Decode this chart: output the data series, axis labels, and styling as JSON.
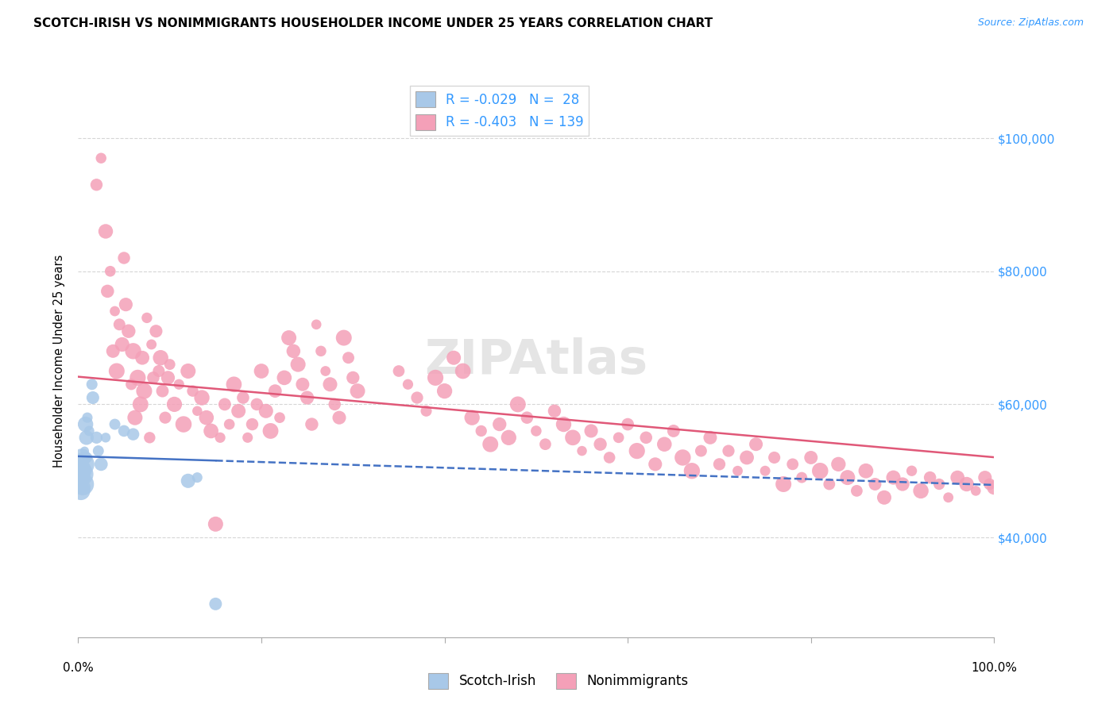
{
  "title": "SCOTCH-IRISH VS NONIMMIGRANTS HOUSEHOLDER INCOME UNDER 25 YEARS CORRELATION CHART",
  "source": "Source: ZipAtlas.com",
  "ylabel": "Householder Income Under 25 years",
  "legend_blue": {
    "R": -0.029,
    "N": 28,
    "label": "Scotch-Irish"
  },
  "legend_pink": {
    "R": -0.403,
    "N": 139,
    "label": "Nonimmigrants"
  },
  "ylim": [
    25000,
    108000
  ],
  "xlim": [
    0.0,
    1.0
  ],
  "yticks": [
    40000,
    60000,
    80000,
    100000
  ],
  "ytick_labels": [
    "$40,000",
    "$60,000",
    "$80,000",
    "$100,000"
  ],
  "blue_color": "#a8c8e8",
  "blue_line_color": "#4472c4",
  "pink_color": "#f4a0b8",
  "pink_line_color": "#e05878",
  "background_color": "#ffffff",
  "grid_color": "#cccccc",
  "scotch_irish_points": [
    [
      0.001,
      49000
    ],
    [
      0.002,
      48500
    ],
    [
      0.003,
      50000
    ],
    [
      0.003,
      47000
    ],
    [
      0.004,
      52000
    ],
    [
      0.004,
      49500
    ],
    [
      0.005,
      51000
    ],
    [
      0.005,
      48000
    ],
    [
      0.006,
      50500
    ],
    [
      0.006,
      47500
    ],
    [
      0.007,
      53000
    ],
    [
      0.008,
      57000
    ],
    [
      0.009,
      55000
    ],
    [
      0.01,
      58000
    ],
    [
      0.01,
      52000
    ],
    [
      0.012,
      56000
    ],
    [
      0.015,
      63000
    ],
    [
      0.016,
      61000
    ],
    [
      0.02,
      55000
    ],
    [
      0.022,
      53000
    ],
    [
      0.025,
      51000
    ],
    [
      0.03,
      55000
    ],
    [
      0.04,
      57000
    ],
    [
      0.05,
      56000
    ],
    [
      0.06,
      55500
    ],
    [
      0.12,
      48500
    ],
    [
      0.13,
      49000
    ],
    [
      0.15,
      30000
    ]
  ],
  "nonimmigrant_points": [
    [
      0.02,
      93000
    ],
    [
      0.025,
      97000
    ],
    [
      0.03,
      86000
    ],
    [
      0.032,
      77000
    ],
    [
      0.035,
      80000
    ],
    [
      0.038,
      68000
    ],
    [
      0.04,
      74000
    ],
    [
      0.042,
      65000
    ],
    [
      0.045,
      72000
    ],
    [
      0.048,
      69000
    ],
    [
      0.05,
      82000
    ],
    [
      0.052,
      75000
    ],
    [
      0.055,
      71000
    ],
    [
      0.058,
      63000
    ],
    [
      0.06,
      68000
    ],
    [
      0.062,
      58000
    ],
    [
      0.065,
      64000
    ],
    [
      0.068,
      60000
    ],
    [
      0.07,
      67000
    ],
    [
      0.072,
      62000
    ],
    [
      0.075,
      73000
    ],
    [
      0.078,
      55000
    ],
    [
      0.08,
      69000
    ],
    [
      0.082,
      64000
    ],
    [
      0.085,
      71000
    ],
    [
      0.088,
      65000
    ],
    [
      0.09,
      67000
    ],
    [
      0.092,
      62000
    ],
    [
      0.095,
      58000
    ],
    [
      0.098,
      64000
    ],
    [
      0.1,
      66000
    ],
    [
      0.105,
      60000
    ],
    [
      0.11,
      63000
    ],
    [
      0.115,
      57000
    ],
    [
      0.12,
      65000
    ],
    [
      0.125,
      62000
    ],
    [
      0.13,
      59000
    ],
    [
      0.135,
      61000
    ],
    [
      0.14,
      58000
    ],
    [
      0.145,
      56000
    ],
    [
      0.15,
      42000
    ],
    [
      0.155,
      55000
    ],
    [
      0.16,
      60000
    ],
    [
      0.165,
      57000
    ],
    [
      0.17,
      63000
    ],
    [
      0.175,
      59000
    ],
    [
      0.18,
      61000
    ],
    [
      0.185,
      55000
    ],
    [
      0.19,
      57000
    ],
    [
      0.195,
      60000
    ],
    [
      0.2,
      65000
    ],
    [
      0.205,
      59000
    ],
    [
      0.21,
      56000
    ],
    [
      0.215,
      62000
    ],
    [
      0.22,
      58000
    ],
    [
      0.225,
      64000
    ],
    [
      0.23,
      70000
    ],
    [
      0.235,
      68000
    ],
    [
      0.24,
      66000
    ],
    [
      0.245,
      63000
    ],
    [
      0.25,
      61000
    ],
    [
      0.255,
      57000
    ],
    [
      0.26,
      72000
    ],
    [
      0.265,
      68000
    ],
    [
      0.27,
      65000
    ],
    [
      0.275,
      63000
    ],
    [
      0.28,
      60000
    ],
    [
      0.285,
      58000
    ],
    [
      0.29,
      70000
    ],
    [
      0.295,
      67000
    ],
    [
      0.3,
      64000
    ],
    [
      0.305,
      62000
    ],
    [
      0.35,
      65000
    ],
    [
      0.36,
      63000
    ],
    [
      0.37,
      61000
    ],
    [
      0.38,
      59000
    ],
    [
      0.39,
      64000
    ],
    [
      0.4,
      62000
    ],
    [
      0.41,
      67000
    ],
    [
      0.42,
      65000
    ],
    [
      0.43,
      58000
    ],
    [
      0.44,
      56000
    ],
    [
      0.45,
      54000
    ],
    [
      0.46,
      57000
    ],
    [
      0.47,
      55000
    ],
    [
      0.48,
      60000
    ],
    [
      0.49,
      58000
    ],
    [
      0.5,
      56000
    ],
    [
      0.51,
      54000
    ],
    [
      0.52,
      59000
    ],
    [
      0.53,
      57000
    ],
    [
      0.54,
      55000
    ],
    [
      0.55,
      53000
    ],
    [
      0.56,
      56000
    ],
    [
      0.57,
      54000
    ],
    [
      0.58,
      52000
    ],
    [
      0.59,
      55000
    ],
    [
      0.6,
      57000
    ],
    [
      0.61,
      53000
    ],
    [
      0.62,
      55000
    ],
    [
      0.63,
      51000
    ],
    [
      0.64,
      54000
    ],
    [
      0.65,
      56000
    ],
    [
      0.66,
      52000
    ],
    [
      0.67,
      50000
    ],
    [
      0.68,
      53000
    ],
    [
      0.69,
      55000
    ],
    [
      0.7,
      51000
    ],
    [
      0.71,
      53000
    ],
    [
      0.72,
      50000
    ],
    [
      0.73,
      52000
    ],
    [
      0.74,
      54000
    ],
    [
      0.75,
      50000
    ],
    [
      0.76,
      52000
    ],
    [
      0.77,
      48000
    ],
    [
      0.78,
      51000
    ],
    [
      0.79,
      49000
    ],
    [
      0.8,
      52000
    ],
    [
      0.81,
      50000
    ],
    [
      0.82,
      48000
    ],
    [
      0.83,
      51000
    ],
    [
      0.84,
      49000
    ],
    [
      0.85,
      47000
    ],
    [
      0.86,
      50000
    ],
    [
      0.87,
      48000
    ],
    [
      0.88,
      46000
    ],
    [
      0.89,
      49000
    ],
    [
      0.9,
      48000
    ],
    [
      0.91,
      50000
    ],
    [
      0.92,
      47000
    ],
    [
      0.93,
      49000
    ],
    [
      0.94,
      48000
    ],
    [
      0.95,
      46000
    ],
    [
      0.96,
      49000
    ],
    [
      0.97,
      48000
    ],
    [
      0.98,
      47000
    ],
    [
      0.99,
      49000
    ],
    [
      0.995,
      48000
    ],
    [
      1.0,
      47500
    ]
  ]
}
